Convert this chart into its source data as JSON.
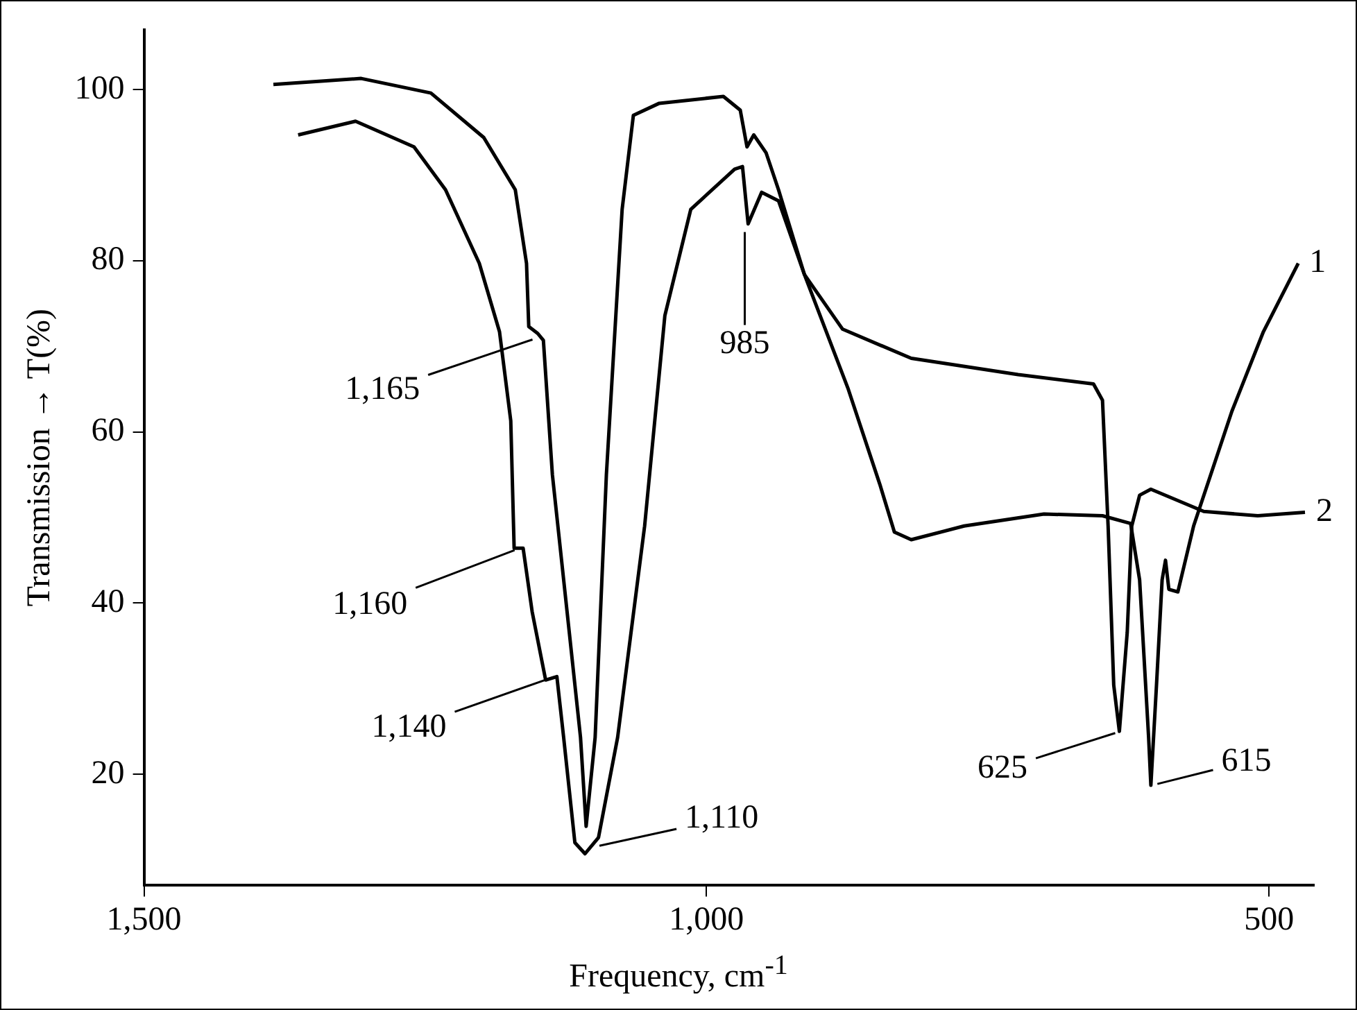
{
  "chart_data": {
    "type": "line",
    "xlabel": "Frequency, cm$^{-1}$",
    "ylabel": "Transmission → T(%)",
    "xlim": [
      1500,
      460
    ],
    "xticks": [
      {
        "value": 1500,
        "label": "1,500"
      },
      {
        "value": 1000,
        "label": "1,000"
      },
      500
    ],
    "ylim": [
      7,
      107
    ],
    "yticks": [
      20,
      40,
      60,
      80,
      100
    ],
    "legend": false,
    "series": [
      {
        "name": "1",
        "color": "#000000",
        "x": [
          1385,
          1307,
          1245,
          1198,
          1170,
          1160,
          1158,
          1150,
          1145,
          1137,
          1122,
          1112,
          1107,
          1099,
          1089,
          1075,
          1065,
          1042,
          985,
          970,
          964,
          958,
          947,
          936,
          913,
          874,
          846,
          833,
          818,
          771,
          700,
          648,
          623,
          615,
          607,
          605,
          600,
          595,
          592,
          589,
          581,
          567,
          533,
          505,
          474
        ],
        "values": [
          100.6,
          101.3,
          99.6,
          94.4,
          88.3,
          79.7,
          72.3,
          71.5,
          70.7,
          55,
          36.6,
          24.3,
          13.9,
          24.3,
          55,
          86,
          97,
          98.4,
          99.2,
          97.6,
          93.3,
          94.7,
          92.6,
          88.3,
          78.4,
          65,
          53.9,
          48.3,
          47.4,
          49,
          50.4,
          50.2,
          49.3,
          42.7,
          24.3,
          18.7,
          30.4,
          42.7,
          45,
          41.6,
          41.3,
          49,
          62.4,
          71.7,
          79.7
        ]
      },
      {
        "name": "2",
        "color": "#000000",
        "x": [
          1363,
          1312,
          1260,
          1232,
          1202,
          1184,
          1174,
          1171,
          1163,
          1155,
          1143,
          1133,
          1127,
          1117,
          1108,
          1096,
          1079,
          1055,
          1037,
          1014,
          975,
          968,
          963,
          951,
          936,
          913,
          879,
          818,
          723,
          656,
          648,
          643,
          638,
          633,
          626,
          622,
          615,
          605,
          558,
          510,
          468
        ],
        "values": [
          94.7,
          96.3,
          93.3,
          88.3,
          79.7,
          71.7,
          61.3,
          46.4,
          46.4,
          39,
          31,
          31.4,
          24.3,
          12,
          10.7,
          12.6,
          24.3,
          49,
          73.6,
          86,
          90.7,
          91,
          84.3,
          88,
          87,
          78.4,
          72,
          68.6,
          66.7,
          65.6,
          63.7,
          49,
          30.4,
          25,
          36.6,
          49,
          52.6,
          53.3,
          50.7,
          50.2,
          50.6
        ]
      }
    ],
    "annotations": [
      {
        "text": "1,165",
        "x": 1150,
        "y": 71
      },
      {
        "text": "1,160",
        "x": 1166,
        "y": 46.4
      },
      {
        "text": "1,140",
        "x": 1135,
        "y": 31.4
      },
      {
        "text": "1,110",
        "x": 1100,
        "y": 11.5
      },
      {
        "text": "985",
        "x": 966,
        "y": 84
      },
      {
        "text": "625",
        "x": 632,
        "y": 25
      },
      {
        "text": "615",
        "x": 604,
        "y": 18.7
      }
    ]
  }
}
